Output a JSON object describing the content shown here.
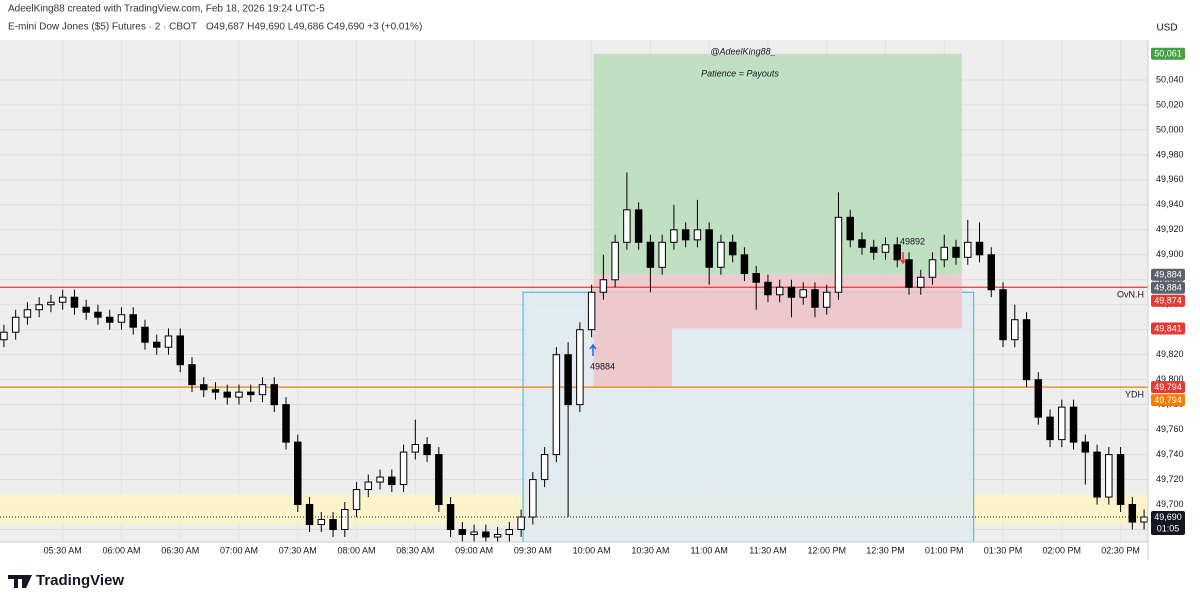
{
  "header": {
    "author_line": "AdeelKing88 created with TradingView.com, Feb 18, 2026 19:24 UTC-5",
    "symbol_line": "E-mini Dow Jones ($5) Futures · 2 · CBOT",
    "ohlc_text": "O49,687 H49,690 L49,686 C49,690 +3 (+0.01%)"
  },
  "footer": {
    "brand": "TradingView"
  },
  "chart_data": {
    "type": "candlestick",
    "currency": "USD",
    "x": [
      300,
      306,
      312,
      318,
      324,
      330,
      336,
      342,
      348,
      354,
      360,
      366,
      372,
      378,
      384,
      390,
      396,
      402,
      408,
      414,
      420,
      426,
      432,
      438,
      444,
      450,
      456,
      462,
      468,
      474,
      480,
      486,
      492,
      498,
      504,
      510,
      516,
      522,
      528,
      534,
      540,
      546,
      552,
      558,
      564,
      570,
      576,
      582,
      588,
      594,
      600,
      606,
      612,
      618,
      624,
      630,
      636,
      642,
      648,
      654,
      660,
      666,
      672,
      678,
      684,
      690,
      696,
      702,
      708,
      714,
      720,
      726,
      732,
      738,
      744,
      750,
      756,
      762,
      768,
      774,
      780,
      786,
      792,
      798,
      804,
      810,
      816,
      822,
      828,
      834,
      840,
      846,
      852,
      858,
      864,
      870,
      876,
      882
    ],
    "open": [
      49832,
      49838,
      49850,
      49856,
      49860,
      49862,
      49866,
      49858,
      49854,
      49850,
      49846,
      49852,
      49842,
      49830,
      49826,
      49835,
      49812,
      49796,
      49792,
      49790,
      49786,
      49790,
      49788,
      49796,
      49780,
      49750,
      49700,
      49684,
      49688,
      49680,
      49696,
      49712,
      49718,
      49722,
      49716,
      49742,
      49748,
      49740,
      49700,
      49680,
      49676,
      49678,
      49674,
      49676,
      49680,
      49690,
      49720,
      49740,
      49820,
      49780,
      49840,
      49870,
      49880,
      49910,
      49936,
      49910,
      49890,
      49910,
      49920,
      49912,
      49920,
      49890,
      49910,
      49900,
      49885,
      49878,
      49868,
      49874,
      49866,
      49872,
      49858,
      49870,
      49930,
      49912,
      49906,
      49902,
      49908,
      49896,
      49874,
      49882,
      49896,
      49906,
      49898,
      49910,
      49900,
      49872,
      49832,
      49848,
      49800,
      49770,
      49752,
      49778,
      49750,
      49742,
      49706,
      49740,
      49700,
      49686
    ],
    "high": [
      49844,
      49856,
      49862,
      49866,
      49868,
      49872,
      49872,
      49864,
      49860,
      49856,
      49858,
      49858,
      49848,
      49836,
      49841,
      49841,
      49818,
      49802,
      49798,
      49796,
      49796,
      49796,
      49802,
      49802,
      49786,
      49756,
      49706,
      49694,
      49694,
      49702,
      49718,
      49724,
      49728,
      49728,
      49748,
      49768,
      49754,
      49746,
      49706,
      49686,
      49684,
      49684,
      49682,
      49686,
      49696,
      49726,
      49746,
      49826,
      49830,
      49846,
      49876,
      49900,
      49916,
      49966,
      49942,
      49916,
      49916,
      49940,
      49926,
      49944,
      49926,
      49916,
      49916,
      49906,
      49891,
      49884,
      49880,
      49880,
      49878,
      49878,
      49876,
      49950,
      49936,
      49918,
      49912,
      49914,
      49914,
      49902,
      49888,
      49902,
      49916,
      49912,
      49928,
      49926,
      49906,
      49878,
      49860,
      49854,
      49806,
      49776,
      49784,
      49784,
      49756,
      49748,
      49746,
      49746,
      49706,
      49696
    ],
    "low": [
      49826,
      49832,
      49844,
      49850,
      49854,
      49856,
      49852,
      49848,
      49844,
      49840,
      49840,
      49836,
      49824,
      49820,
      49820,
      49806,
      49790,
      49786,
      49784,
      49780,
      49780,
      49782,
      49782,
      49774,
      49744,
      49694,
      49678,
      49678,
      49674,
      49674,
      49690,
      49706,
      49712,
      49710,
      49710,
      49736,
      49734,
      49694,
      49674,
      49670,
      49670,
      49670,
      49670,
      49670,
      49674,
      49684,
      49714,
      49734,
      49690,
      49774,
      49834,
      49864,
      49874,
      49904,
      49904,
      49870,
      49884,
      49904,
      49906,
      49906,
      49876,
      49884,
      49894,
      49879,
      49856,
      49862,
      49862,
      49850,
      49860,
      49850,
      49852,
      49864,
      49906,
      49900,
      49896,
      49896,
      49890,
      49868,
      49868,
      49876,
      49890,
      49892,
      49892,
      49894,
      49866,
      49826,
      49826,
      49794,
      49764,
      49746,
      49746,
      49744,
      49716,
      49700,
      49700,
      49694,
      49680,
      49680
    ],
    "close": [
      49838,
      49850,
      49856,
      49860,
      49862,
      49866,
      49858,
      49854,
      49850,
      49846,
      49852,
      49842,
      49830,
      49826,
      49835,
      49812,
      49796,
      49792,
      49790,
      49786,
      49790,
      49788,
      49796,
      49780,
      49750,
      49700,
      49684,
      49688,
      49680,
      49696,
      49712,
      49718,
      49722,
      49716,
      49742,
      49748,
      49740,
      49700,
      49680,
      49676,
      49678,
      49674,
      49676,
      49680,
      49690,
      49720,
      49740,
      49820,
      49780,
      49840,
      49870,
      49880,
      49910,
      49936,
      49910,
      49890,
      49910,
      49920,
      49912,
      49920,
      49890,
      49910,
      49900,
      49885,
      49878,
      49868,
      49874,
      49866,
      49872,
      49858,
      49870,
      49930,
      49912,
      49906,
      49902,
      49908,
      49896,
      49874,
      49882,
      49896,
      49906,
      49898,
      49910,
      49900,
      49872,
      49832,
      49848,
      49800,
      49770,
      49752,
      49778,
      49750,
      49742,
      49706,
      49740,
      49700,
      49686,
      49690
    ],
    "up_color": "#ffffff",
    "down_color": "#000000",
    "xlim": [
      298,
      884
    ],
    "xticks": [
      {
        "value": 330,
        "label": "05:30 AM"
      },
      {
        "value": 360,
        "label": "06:00 AM"
      },
      {
        "value": 390,
        "label": "06:30 AM"
      },
      {
        "value": 420,
        "label": "07:00 AM"
      },
      {
        "value": 450,
        "label": "07:30 AM"
      },
      {
        "value": 480,
        "label": "08:00 AM"
      },
      {
        "value": 510,
        "label": "08:30 AM"
      },
      {
        "value": 540,
        "label": "09:00 AM"
      },
      {
        "value": 570,
        "label": "09:30 AM"
      },
      {
        "value": 600,
        "label": "10:00 AM"
      },
      {
        "value": 630,
        "label": "10:30 AM"
      },
      {
        "value": 660,
        "label": "11:00 AM"
      },
      {
        "value": 690,
        "label": "11:30 AM"
      },
      {
        "value": 720,
        "label": "12:00 PM"
      },
      {
        "value": 750,
        "label": "12:30 PM"
      },
      {
        "value": 780,
        "label": "01:00 PM"
      },
      {
        "value": 810,
        "label": "01:30 PM"
      },
      {
        "value": 840,
        "label": "02:00 PM"
      },
      {
        "value": 870,
        "label": "02:30 PM"
      }
    ],
    "ylim": [
      49670,
      50072
    ],
    "yticks": [
      {
        "value": 49680,
        "label": "49,680"
      },
      {
        "value": 49700,
        "label": "49,700"
      },
      {
        "value": 49720,
        "label": "49,720"
      },
      {
        "value": 49740,
        "label": "49,740"
      },
      {
        "value": 49760,
        "label": "49,760"
      },
      {
        "value": 49780,
        "label": "49,780"
      },
      {
        "value": 49800,
        "label": "49,800"
      },
      {
        "value": 49820,
        "label": "49,820"
      },
      {
        "value": 49840,
        "label": "49,840"
      },
      {
        "value": 49860,
        "label": "49,860"
      },
      {
        "value": 49880,
        "label": "49,880"
      },
      {
        "value": 49900,
        "label": "49,900"
      },
      {
        "value": 49920,
        "label": "49,920"
      },
      {
        "value": 49940,
        "label": "49,940"
      },
      {
        "value": 49960,
        "label": "49,960"
      },
      {
        "value": 49980,
        "label": "49,980"
      },
      {
        "value": 50000,
        "label": "50,000"
      },
      {
        "value": 50020,
        "label": "50,020"
      },
      {
        "value": 50040,
        "label": "50,040"
      }
    ],
    "grid": true,
    "zones": [
      {
        "x": [
          298,
          884
        ],
        "y": [
          49684,
          49708
        ],
        "color": "#fff3c4"
      },
      {
        "x": [
          565,
          795
        ],
        "y": [
          49670,
          49870
        ],
        "color": "#dfeaf0",
        "border": "#4fc3d9"
      },
      {
        "x": [
          601,
          789
        ],
        "y": [
          49884,
          50061
        ],
        "color": "#b9dcb9"
      },
      {
        "x": [
          601,
          789
        ],
        "y": [
          49841,
          49884
        ],
        "color": "#efc3c8"
      },
      {
        "x": [
          601,
          641
        ],
        "y": [
          49794,
          49841
        ],
        "color": "#efc3c8"
      }
    ],
    "levels": [
      {
        "name": "OvN.H",
        "value": 49874,
        "color": "#e53935"
      },
      {
        "name": "YDH",
        "value": 49794,
        "color": "#f57c00"
      }
    ],
    "price_tags": [
      {
        "value": 50061,
        "label": "50,061",
        "color": "#43a047"
      },
      {
        "value": 49884,
        "label": "49,884",
        "color": "#5d606b"
      },
      {
        "value": 49884,
        "label": "49,884",
        "color": "#5d606b"
      },
      {
        "value": 49874,
        "label": "49,874",
        "color": "#e53935"
      },
      {
        "value": 49841,
        "label": "49,841",
        "color": "#e53935"
      },
      {
        "value": 49794,
        "label": "49,794",
        "color": "#e53935"
      },
      {
        "value": 49794,
        "label": "49,794",
        "color": "#f57c00"
      },
      {
        "value": 49690,
        "label": "49,690",
        "color": "#131722"
      }
    ],
    "countdown": "01:05",
    "annotations": [
      "@AdeelKing88_",
      "Patience = Payouts",
      "49884",
      "49892"
    ]
  }
}
